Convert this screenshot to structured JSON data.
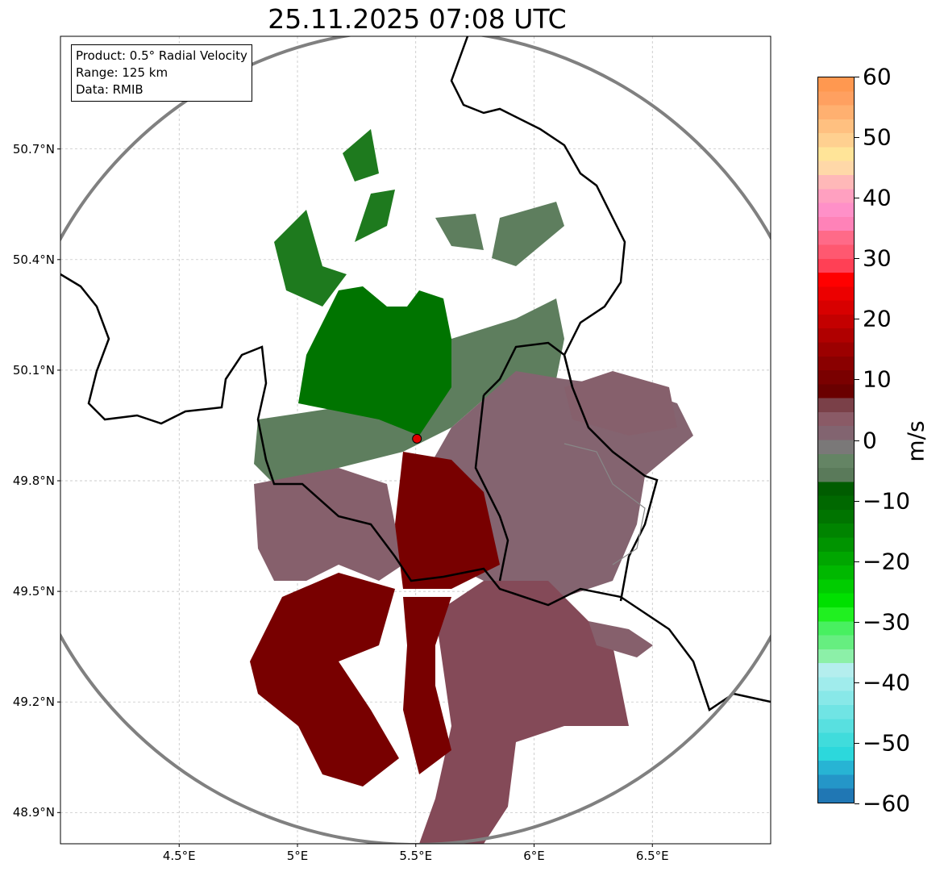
{
  "title": "25.11.2025 07:08 UTC",
  "info": {
    "product": "Product: 0.5° Radial Velocity",
    "range": "Range: 125 km",
    "data": "Data: RMIB"
  },
  "axes": {
    "lon_ticks": [
      {
        "value": 4.5,
        "label": "4.5°E"
      },
      {
        "value": 5.0,
        "label": "5°E"
      },
      {
        "value": 5.5,
        "label": "5.5°E"
      },
      {
        "value": 6.0,
        "label": "6°E"
      },
      {
        "value": 6.5,
        "label": "6.5°E"
      }
    ],
    "lat_ticks": [
      {
        "value": 50.7,
        "label": "50.7°N"
      },
      {
        "value": 50.4,
        "label": "50.4°N"
      },
      {
        "value": 50.1,
        "label": "50.1°N"
      },
      {
        "value": 49.8,
        "label": "49.8°N"
      },
      {
        "value": 49.5,
        "label": "49.5°N"
      },
      {
        "value": 49.2,
        "label": "49.2°N"
      },
      {
        "value": 48.9,
        "label": "48.9°N"
      }
    ],
    "lon_range": [
      4.0,
      7.0
    ],
    "lat_range": [
      48.81,
      51.0
    ]
  },
  "radar_site": {
    "lon": 5.505,
    "lat": 49.914
  },
  "colorbar": {
    "unit": "m/s",
    "range": [
      -60,
      60
    ],
    "ticks": [
      {
        "value": 60,
        "label": "60"
      },
      {
        "value": 50,
        "label": "50"
      },
      {
        "value": 40,
        "label": "40"
      },
      {
        "value": 30,
        "label": "30"
      },
      {
        "value": 20,
        "label": "20"
      },
      {
        "value": 10,
        "label": "10"
      },
      {
        "value": 0,
        "label": "0"
      },
      {
        "value": -10,
        "label": "−10"
      },
      {
        "value": -20,
        "label": "−20"
      },
      {
        "value": -30,
        "label": "−30"
      },
      {
        "value": -40,
        "label": "−40"
      },
      {
        "value": -50,
        "label": "−50"
      },
      {
        "value": -60,
        "label": "−60"
      }
    ],
    "colors": [
      "#2077b4",
      "#2496c8",
      "#27b4d4",
      "#2cd8dc",
      "#40dcdc",
      "#58e0e0",
      "#70e4e4",
      "#88e8e8",
      "#a0ecec",
      "#b4eeee",
      "#8cf0a8",
      "#66ee80",
      "#48f060",
      "#20f020",
      "#00e000",
      "#00cc00",
      "#00b800",
      "#00a600",
      "#009400",
      "#008400",
      "#007400",
      "#006800",
      "#005c00",
      "#5a7a5a",
      "#648464",
      "#7a7878",
      "#826470",
      "#8a5a66",
      "#7a4048",
      "#6a0000",
      "#7a0000",
      "#8a0000",
      "#9c0000",
      "#b00000",
      "#c40000",
      "#d80000",
      "#ec0000",
      "#ff0000",
      "#ff4055",
      "#ff5870",
      "#ff6a88",
      "#ff82b8",
      "#ff90c8",
      "#ffa0c0",
      "#ffb8b8",
      "#ffd8a8",
      "#ffe498",
      "#ffd090",
      "#ffc080",
      "#ffb070",
      "#ffa060",
      "#ff9850"
    ]
  }
}
